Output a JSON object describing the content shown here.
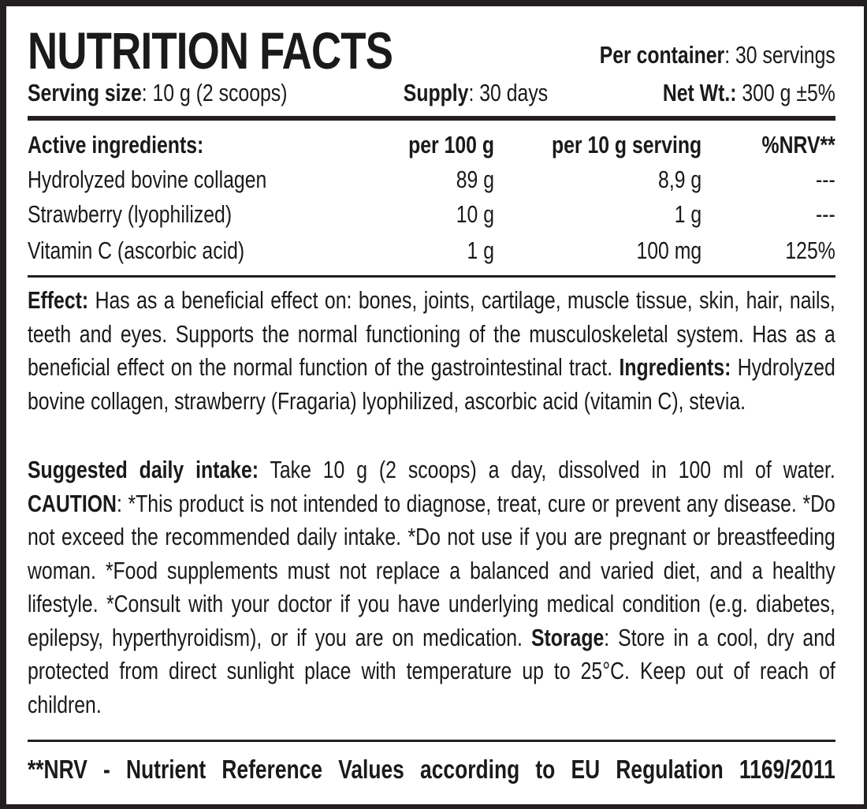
{
  "title": "NUTRITION FACTS",
  "per_container": {
    "label": "Per container",
    "value": ": 30 servings"
  },
  "serving_size": {
    "label": "Serving size",
    "value": ": 10 g (2 scoops)"
  },
  "supply": {
    "label": "Supply",
    "value": ": 30 days"
  },
  "net_wt": {
    "label": "Net Wt.:",
    "value": " 300 g ±5%"
  },
  "table": {
    "headers": [
      "Active ingredients:",
      "per 100 g",
      "per 10 g serving",
      "%NRV**"
    ],
    "rows": [
      [
        "Hydrolyzed bovine collagen",
        "89 g",
        "8,9 g",
        "---"
      ],
      [
        "Strawberry (lyophilized)",
        "10 g",
        "1 g",
        "---"
      ],
      [
        "Vitamin C (ascorbic acid)",
        "1 g",
        "100 mg",
        "125%"
      ]
    ]
  },
  "effect": {
    "label": "Effect:",
    "text": " Has as a beneficial effect on: bones, joints, cartilage, muscle tissue, skin, hair, nails, teeth and eyes. Supports the normal functioning of the musculoskeletal system. Has as a beneficial effect on the normal function of the gastrointestinal tract. ",
    "ingredients_label": "Ingredients:",
    "ingredients_text": " Hydrolyzed bovine collagen, strawberry (Fragaria) lyophilized, ascorbic acid (vitamin C), stevia."
  },
  "intake": {
    "label": "Suggested daily intake:",
    "text": " Take 10 g (2 scoops) a day, dissolved in 100 ml of water. ",
    "caution_label": "CAUTION",
    "caution_text": ": *This product is not intended to diagnose, treat, cure or prevent any disease. *Do not exceed the recommended daily intake. *Do not use if you are pregnant or breastfeeding woman. *Food supplements must not replace a balanced and varied diet, and a healthy lifestyle. *Consult with your doctor if you have underlying medical condition (e.g. diabetes, epilepsy, hyperthyroidism), or if you are on medication. ",
    "storage_label": "Storage",
    "storage_text": ": Store in a cool, dry and protected from direct sunlight place with temperature up to 25°C. Keep out of reach of children."
  },
  "footnote": "**NRV - Nutrient Reference Values according to EU Regulation 1169/2011"
}
